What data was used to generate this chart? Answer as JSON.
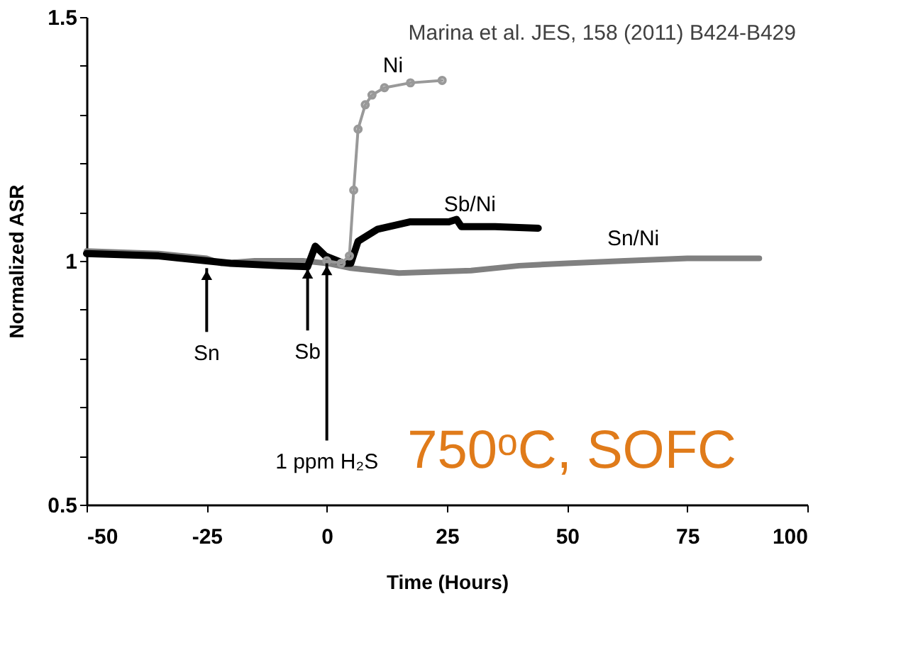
{
  "chart_data": {
    "type": "line",
    "xlabel": "Time (Hours)",
    "ylabel": "Normalized ASR",
    "xlim": [
      -50,
      100
    ],
    "xticks": [
      -50,
      -25,
      0,
      25,
      50,
      75,
      100
    ],
    "ylim": [
      0.5,
      1.5
    ],
    "yticks": [
      0.5,
      {
        "value": 0.6,
        "label": null
      },
      {
        "value": 0.7,
        "label": null
      },
      {
        "value": 0.8,
        "label": null
      },
      {
        "value": 0.9,
        "label": null
      },
      1,
      {
        "value": 1.1,
        "label": null
      },
      {
        "value": 1.2,
        "label": null
      },
      {
        "value": 1.3,
        "label": null
      },
      {
        "value": 1.4,
        "label": null
      },
      1.5
    ],
    "grid": false,
    "series": [
      {
        "name": "Sn/Ni",
        "color": "#808080",
        "marker": "none",
        "x": [
          -50,
          -35,
          -25,
          -22,
          -15,
          -5,
          0,
          5,
          15,
          30,
          40,
          50,
          62,
          75,
          90
        ],
        "values": [
          1.02,
          1.015,
          1.005,
          0.995,
          1.0,
          1.0,
          0.995,
          0.985,
          0.975,
          0.98,
          0.99,
          0.995,
          1.0,
          1.005,
          1.005
        ]
      },
      {
        "name": "Sb/Ni",
        "color": "#000000",
        "marker": "none",
        "x": [
          -50,
          -35,
          -25,
          -20,
          -10,
          -4,
          -2.4,
          -0.3,
          3.5,
          5,
          6.5,
          10.6,
          17.4,
          25.4,
          27,
          28,
          35,
          44
        ],
        "values": [
          1.015,
          1.01,
          1.0,
          0.995,
          0.99,
          0.988,
          1.03,
          1.01,
          0.995,
          0.995,
          1.04,
          1.065,
          1.08,
          1.08,
          1.085,
          1.07,
          1.07,
          1.067
        ]
      },
      {
        "name": "Ni",
        "color": "#999999",
        "marker": "circle",
        "x": [
          0,
          3,
          4.7,
          5.6,
          6.5,
          8,
          9.4,
          12,
          17.4,
          24
        ],
        "values": [
          1.0,
          0.995,
          1.01,
          1.145,
          1.27,
          1.32,
          1.34,
          1.355,
          1.365,
          1.37
        ]
      }
    ],
    "annotations": [
      "Marina et al. JES, 158  (2011) B424-B429",
      "750ᵒC, SOFC",
      {
        "text": "Sn",
        "x": -25,
        "y": 0.985
      },
      {
        "text": "Sb",
        "x": -4,
        "y": 0.988
      },
      {
        "text": "1 ppm H₂S",
        "x": 0,
        "y": 0.995
      }
    ]
  }
}
